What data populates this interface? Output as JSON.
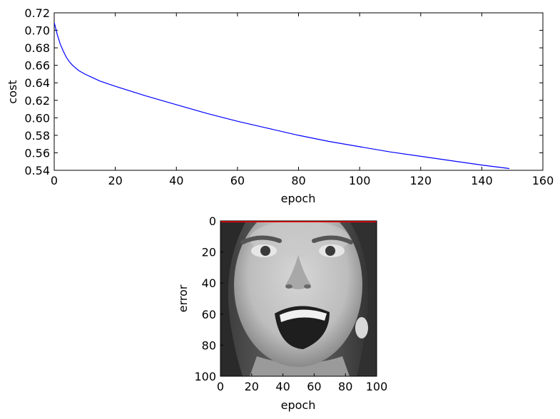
{
  "chart_data": [
    {
      "type": "line",
      "xlabel": "epoch",
      "ylabel": "cost",
      "xlim": [
        0,
        160
      ],
      "ylim": [
        0.54,
        0.72
      ],
      "xticks": [
        "0",
        "20",
        "40",
        "60",
        "80",
        "100",
        "120",
        "140",
        "160"
      ],
      "yticks": [
        "0.54",
        "0.56",
        "0.58",
        "0.60",
        "0.62",
        "0.64",
        "0.66",
        "0.68",
        "0.70",
        "0.72"
      ],
      "grid": false,
      "series": [
        {
          "color": "#0000ff",
          "x": [
            0,
            1,
            2,
            3,
            4,
            5,
            6,
            8,
            10,
            15,
            20,
            30,
            40,
            50,
            60,
            70,
            80,
            90,
            100,
            110,
            120,
            130,
            140,
            149
          ],
          "y": [
            0.709,
            0.695,
            0.684,
            0.676,
            0.669,
            0.664,
            0.66,
            0.654,
            0.65,
            0.642,
            0.636,
            0.625,
            0.615,
            0.605,
            0.596,
            0.588,
            0.58,
            0.573,
            0.567,
            0.561,
            0.556,
            0.551,
            0.546,
            0.542
          ]
        }
      ]
    },
    {
      "type": "image",
      "xlabel": "epoch",
      "ylabel": "error",
      "xlim": [
        0,
        100
      ],
      "ylim": [
        100,
        0
      ],
      "xticks": [
        "0",
        "20",
        "40",
        "60",
        "80",
        "100"
      ],
      "yticks": [
        "0",
        "20",
        "40",
        "60",
        "80",
        "100"
      ],
      "image": "grayscale face photograph",
      "series": [
        {
          "color": "#ff0000",
          "x": [
            0,
            100
          ],
          "y": [
            0,
            0
          ]
        }
      ]
    }
  ]
}
